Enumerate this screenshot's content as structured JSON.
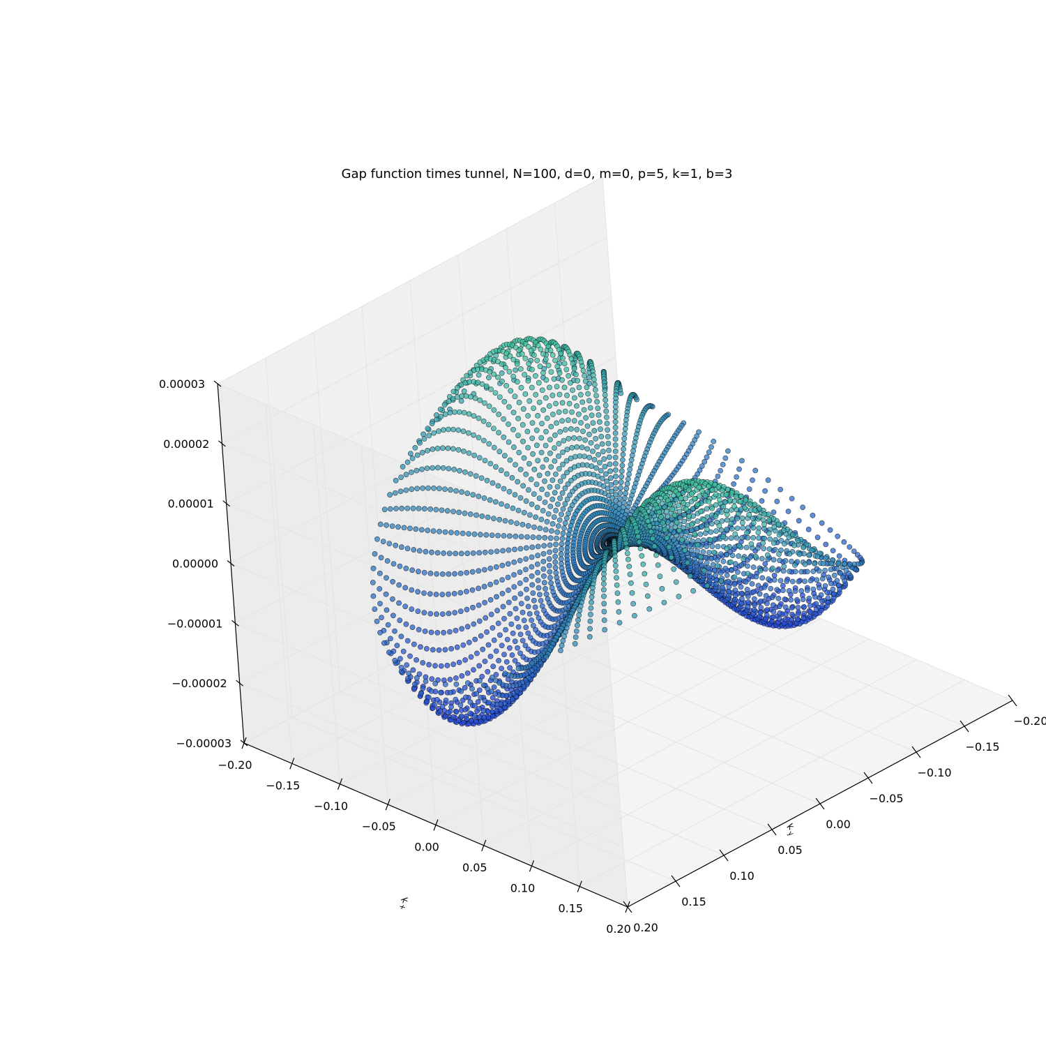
{
  "chart_data": {
    "type": "scatter",
    "projection": "3d",
    "title": "Gap function times tunnel, N=100, d=0, m=0, p=5, k=1, b=3",
    "xlabel": "k_y",
    "ylabel": "k_x",
    "zlabel": "",
    "xlim": [
      -0.2,
      0.2
    ],
    "ylim": [
      -0.2,
      0.2
    ],
    "zlim": [
      -3e-05,
      3e-05
    ],
    "x_ticks": [
      "−0.20",
      "−0.15",
      "−0.10",
      "−0.05",
      "0.00",
      "0.05",
      "0.10",
      "0.15",
      "0.20"
    ],
    "y_ticks": [
      "−0.20",
      "−0.15",
      "−0.10",
      "−0.05",
      "0.00",
      "0.05",
      "0.10",
      "0.15",
      "0.20"
    ],
    "z_ticks": [
      "0.00003",
      "0.00002",
      "0.00001",
      "0.00000",
      "−0.00001",
      "−0.00002",
      "−0.00003"
    ],
    "grid": true,
    "colormap": "winter",
    "pane_color": "#f2f2f2",
    "marker_edge_color": "#000000",
    "surface": {
      "shape": "saddle",
      "radial_lines": 100,
      "points_per_line": 40,
      "r_max": 0.18,
      "amplitude_center": 3e-05,
      "amplitude_rim": 1e-05
    }
  }
}
